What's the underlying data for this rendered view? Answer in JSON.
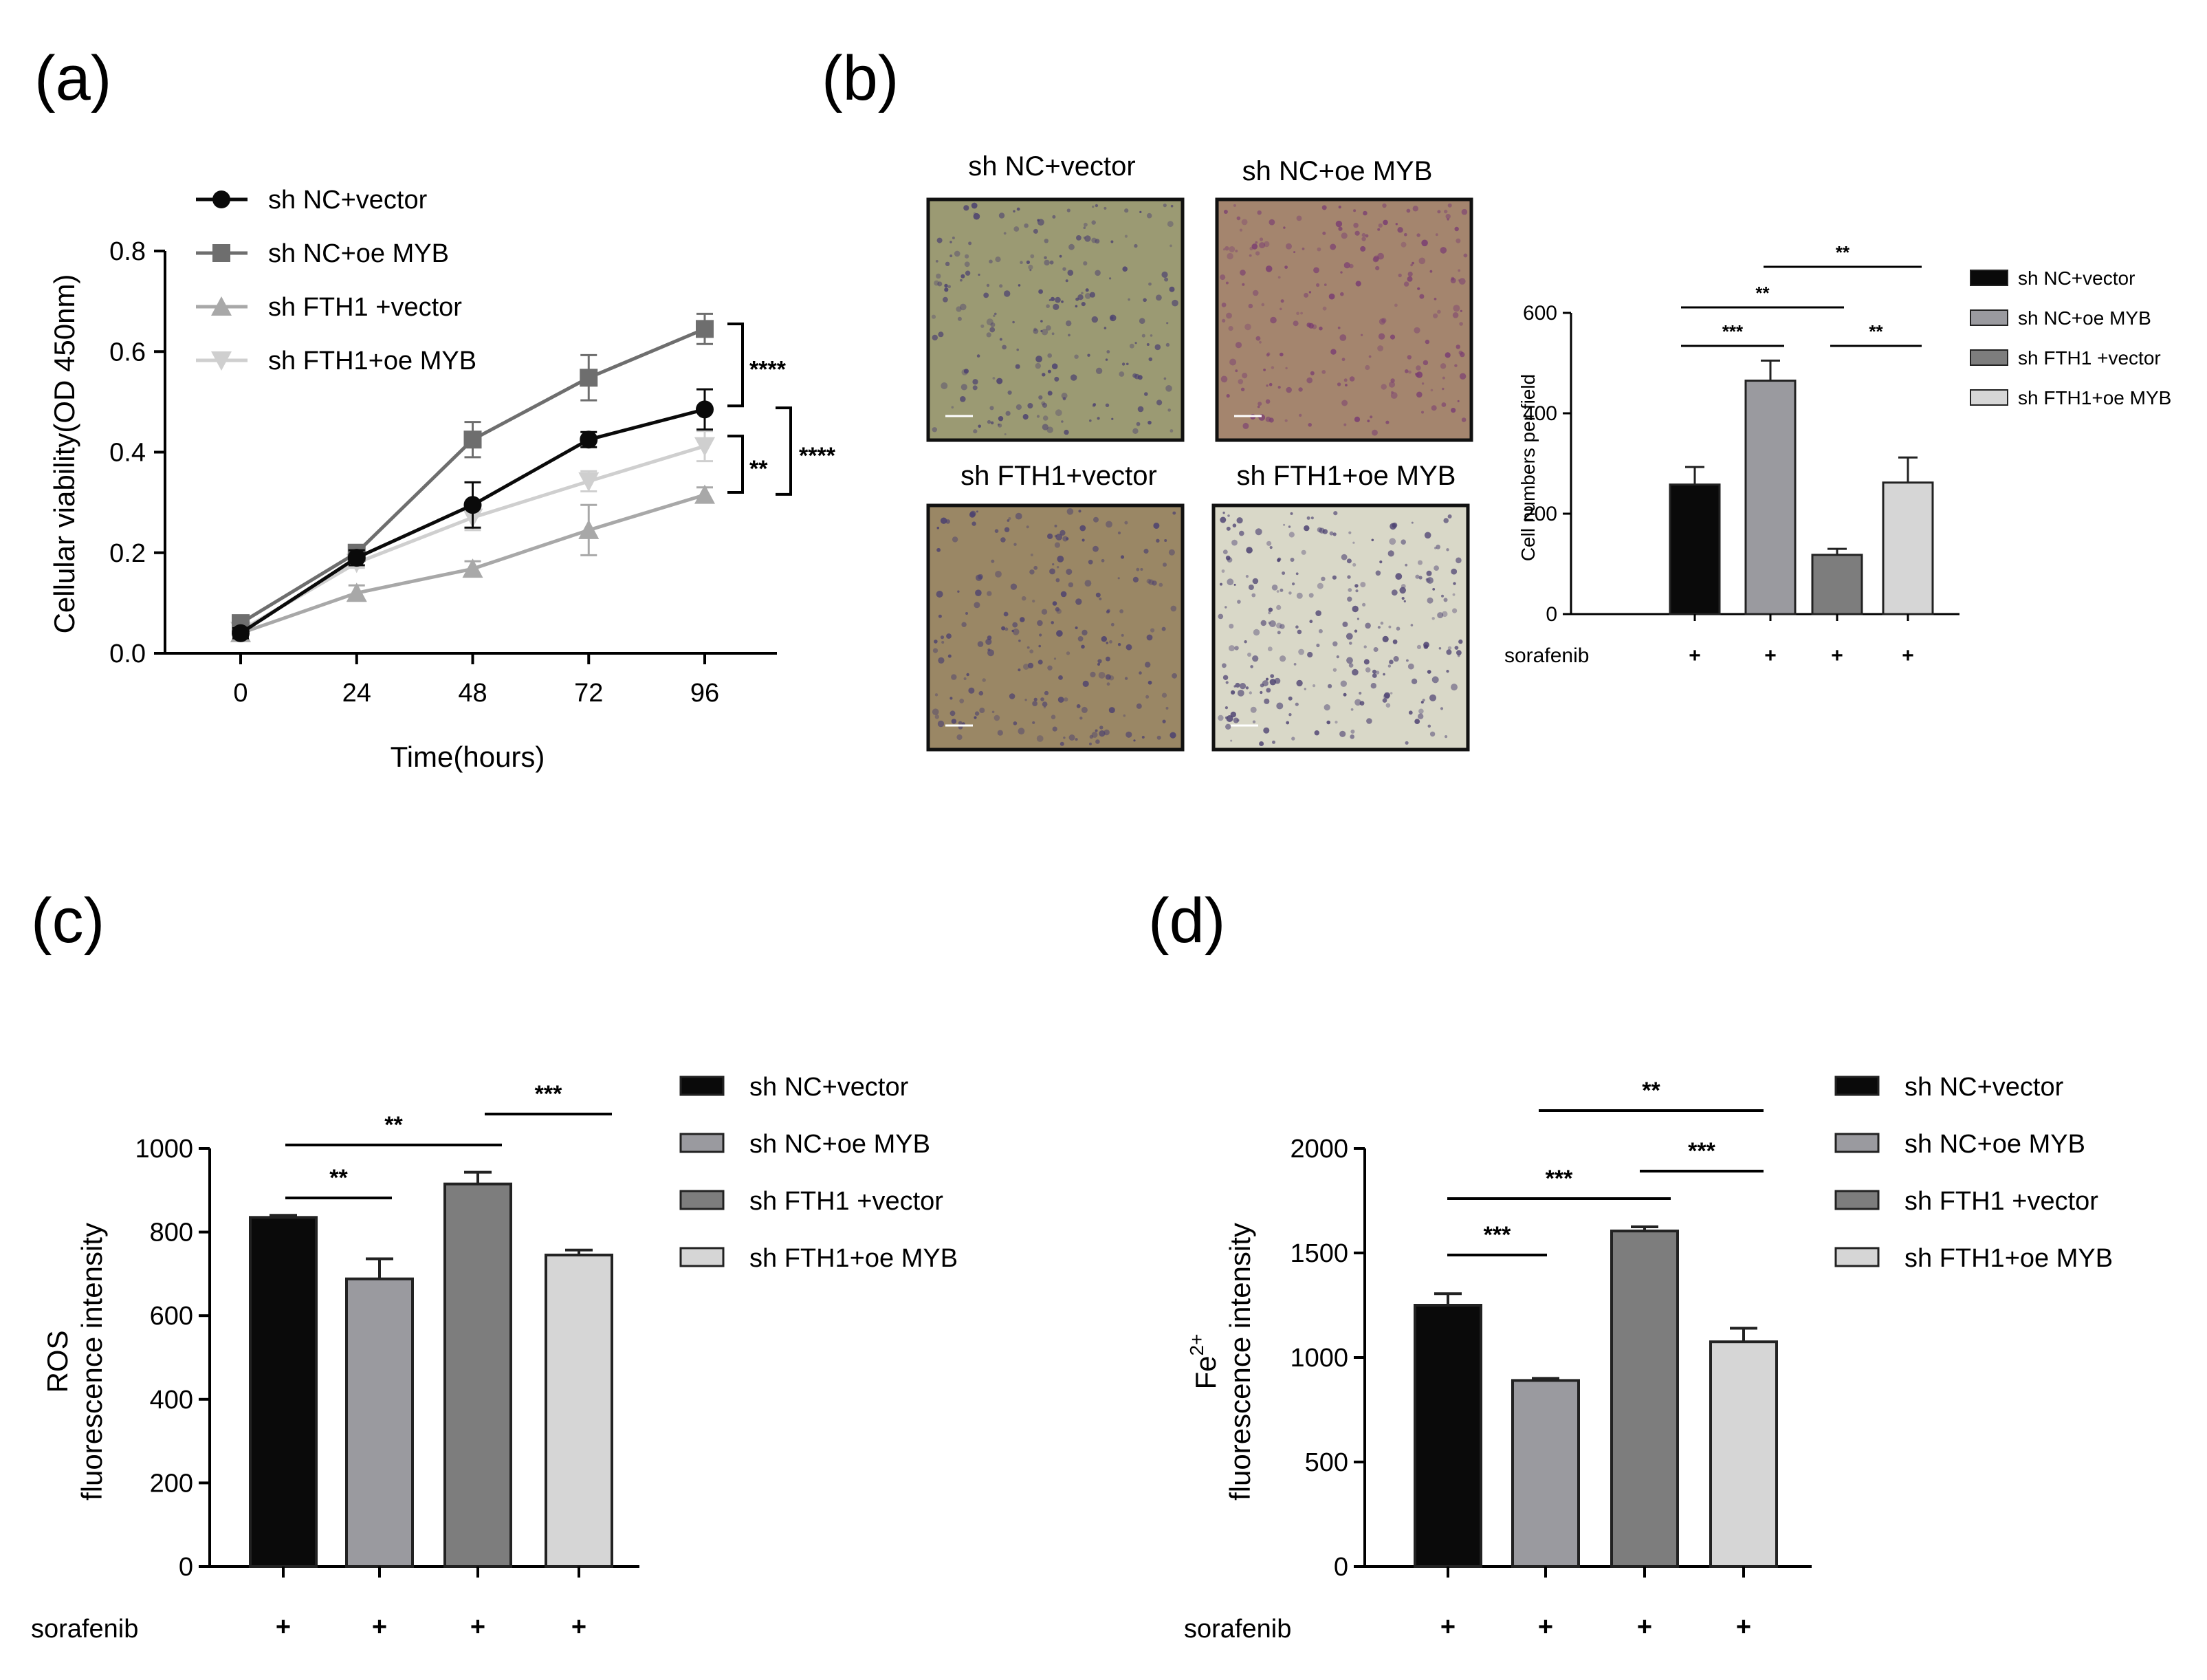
{
  "panels": {
    "a": "(a)",
    "b": "(b)",
    "c": "(c)",
    "d": "(d)"
  },
  "colors": {
    "nc_vector": "#0a0a0a",
    "nc_oe": "#9a9a9f",
    "fth1_vector": "#7d7d7d",
    "fth1_oe": "#d6d6d6",
    "line_nc_oe": "#6e6e6e",
    "line_fth1_vec": "#a8a8a8",
    "line_fth1_oe": "#cfcfcf"
  },
  "photos": {
    "titles": [
      "sh NC+vector",
      "sh NC+oe MYB",
      "sh FTH1+vector",
      "sh FTH1+oe MYB"
    ],
    "tints": [
      "#9b9a73",
      "#a4856e",
      "#9a8765",
      "#d9d8c8"
    ]
  },
  "chart_data": [
    {
      "id": "a",
      "type": "line",
      "title": "",
      "xlabel": "Time(hours)",
      "ylabel": "Cellular viability(OD 450nm)",
      "x": [
        0,
        24,
        48,
        72,
        96
      ],
      "xticks": [
        "0",
        "24",
        "48",
        "72",
        "96"
      ],
      "yticks": [
        "0.0",
        "0.2",
        "0.4",
        "0.6",
        "0.8"
      ],
      "ylim": [
        0,
        0.8
      ],
      "legend_position": "top-left",
      "series": [
        {
          "name": "sh NC+vector",
          "marker": "circle",
          "values": [
            0.04,
            0.19,
            0.295,
            0.425,
            0.485
          ],
          "err": [
            0.01,
            0.015,
            0.045,
            0.015,
            0.04
          ]
        },
        {
          "name": "sh NC+oe MYB",
          "marker": "square",
          "values": [
            0.06,
            0.2,
            0.425,
            0.548,
            0.645
          ],
          "err": [
            0.01,
            0.01,
            0.035,
            0.045,
            0.03
          ]
        },
        {
          "name": "sh FTH1 +vector",
          "marker": "triangle-up",
          "values": [
            0.04,
            0.12,
            0.168,
            0.245,
            0.315
          ],
          "err": [
            0.01,
            0.015,
            0.015,
            0.05,
            0.015
          ]
        },
        {
          "name": "sh FTH1+oe MYB",
          "marker": "triangle-down",
          "values": [
            0.045,
            0.18,
            0.27,
            0.342,
            0.412
          ],
          "err": [
            0.01,
            0.01,
            0.025,
            0.02,
            0.03
          ]
        }
      ],
      "annotations": [
        {
          "label": "****",
          "between": [
            "sh NC+oe MYB",
            "sh NC+vector"
          ]
        },
        {
          "label": "**",
          "between": [
            "sh FTH1+oe MYB",
            "sh FTH1 +vector"
          ]
        },
        {
          "label": "****",
          "between": [
            "sh NC+vector",
            "sh FTH1 +vector"
          ]
        }
      ]
    },
    {
      "id": "b",
      "type": "bar",
      "ylabel": "Cell numbers per field",
      "categories": [
        "sh NC+vector",
        "sh NC+oe MYB",
        "sh FTH1 +vector",
        "sh FTH1+oe MYB"
      ],
      "values": [
        258,
        465,
        118,
        262
      ],
      "err": [
        35,
        40,
        12,
        50
      ],
      "ylim": [
        0,
        600
      ],
      "yticks": [
        "0",
        "200",
        "400",
        "600"
      ],
      "treatment_label": "sorafenib",
      "treatment_marks": [
        "+",
        "+",
        "+",
        "+"
      ],
      "legend_position": "right",
      "annotations": [
        {
          "label": "***",
          "from": 0,
          "to": 1
        },
        {
          "label": "**",
          "from": 0,
          "to": 2
        },
        {
          "label": "**",
          "from": 1,
          "to": 3
        },
        {
          "label": "**",
          "from": 2,
          "to": 3
        }
      ]
    },
    {
      "id": "c",
      "type": "bar",
      "ylabel_line1": "ROS",
      "ylabel_line2": "fluorescence intensity",
      "categories": [
        "sh NC+vector",
        "sh NC+oe MYB",
        "sh FTH1 +vector",
        "sh FTH1+oe MYB"
      ],
      "values": [
        835,
        688,
        915,
        745
      ],
      "err": [
        5,
        48,
        28,
        12
      ],
      "ylim": [
        0,
        1000
      ],
      "yticks": [
        "0",
        "200",
        "400",
        "600",
        "800",
        "1000"
      ],
      "treatment_label": "sorafenib",
      "treatment_marks": [
        "+",
        "+",
        "+",
        "+"
      ],
      "legend_position": "right",
      "annotations": [
        {
          "label": "**",
          "from": 0,
          "to": 1
        },
        {
          "label": "**",
          "from": 0,
          "to": 2
        },
        {
          "label": "***",
          "from": 2,
          "to": 3
        }
      ]
    },
    {
      "id": "d",
      "type": "bar",
      "ylabel_line1": "Fe",
      "ylabel_sup": "2+",
      "ylabel_line2": "fluorescence intensity",
      "categories": [
        "sh NC+vector",
        "sh NC+oe MYB",
        "sh FTH1 +vector",
        "sh FTH1+oe MYB"
      ],
      "values": [
        1250,
        890,
        1605,
        1075
      ],
      "err": [
        55,
        10,
        20,
        65
      ],
      "ylim": [
        0,
        2000
      ],
      "yticks": [
        "0",
        "500",
        "1000",
        "1500",
        "2000"
      ],
      "treatment_label": "sorafenib",
      "treatment_marks": [
        "+",
        "+",
        "+",
        "+"
      ],
      "legend_position": "right",
      "annotations": [
        {
          "label": "***",
          "from": 0,
          "to": 1
        },
        {
          "label": "***",
          "from": 0,
          "to": 2
        },
        {
          "label": "**",
          "from": 1,
          "to": 3
        },
        {
          "label": "***",
          "from": 2,
          "to": 3
        }
      ]
    }
  ]
}
